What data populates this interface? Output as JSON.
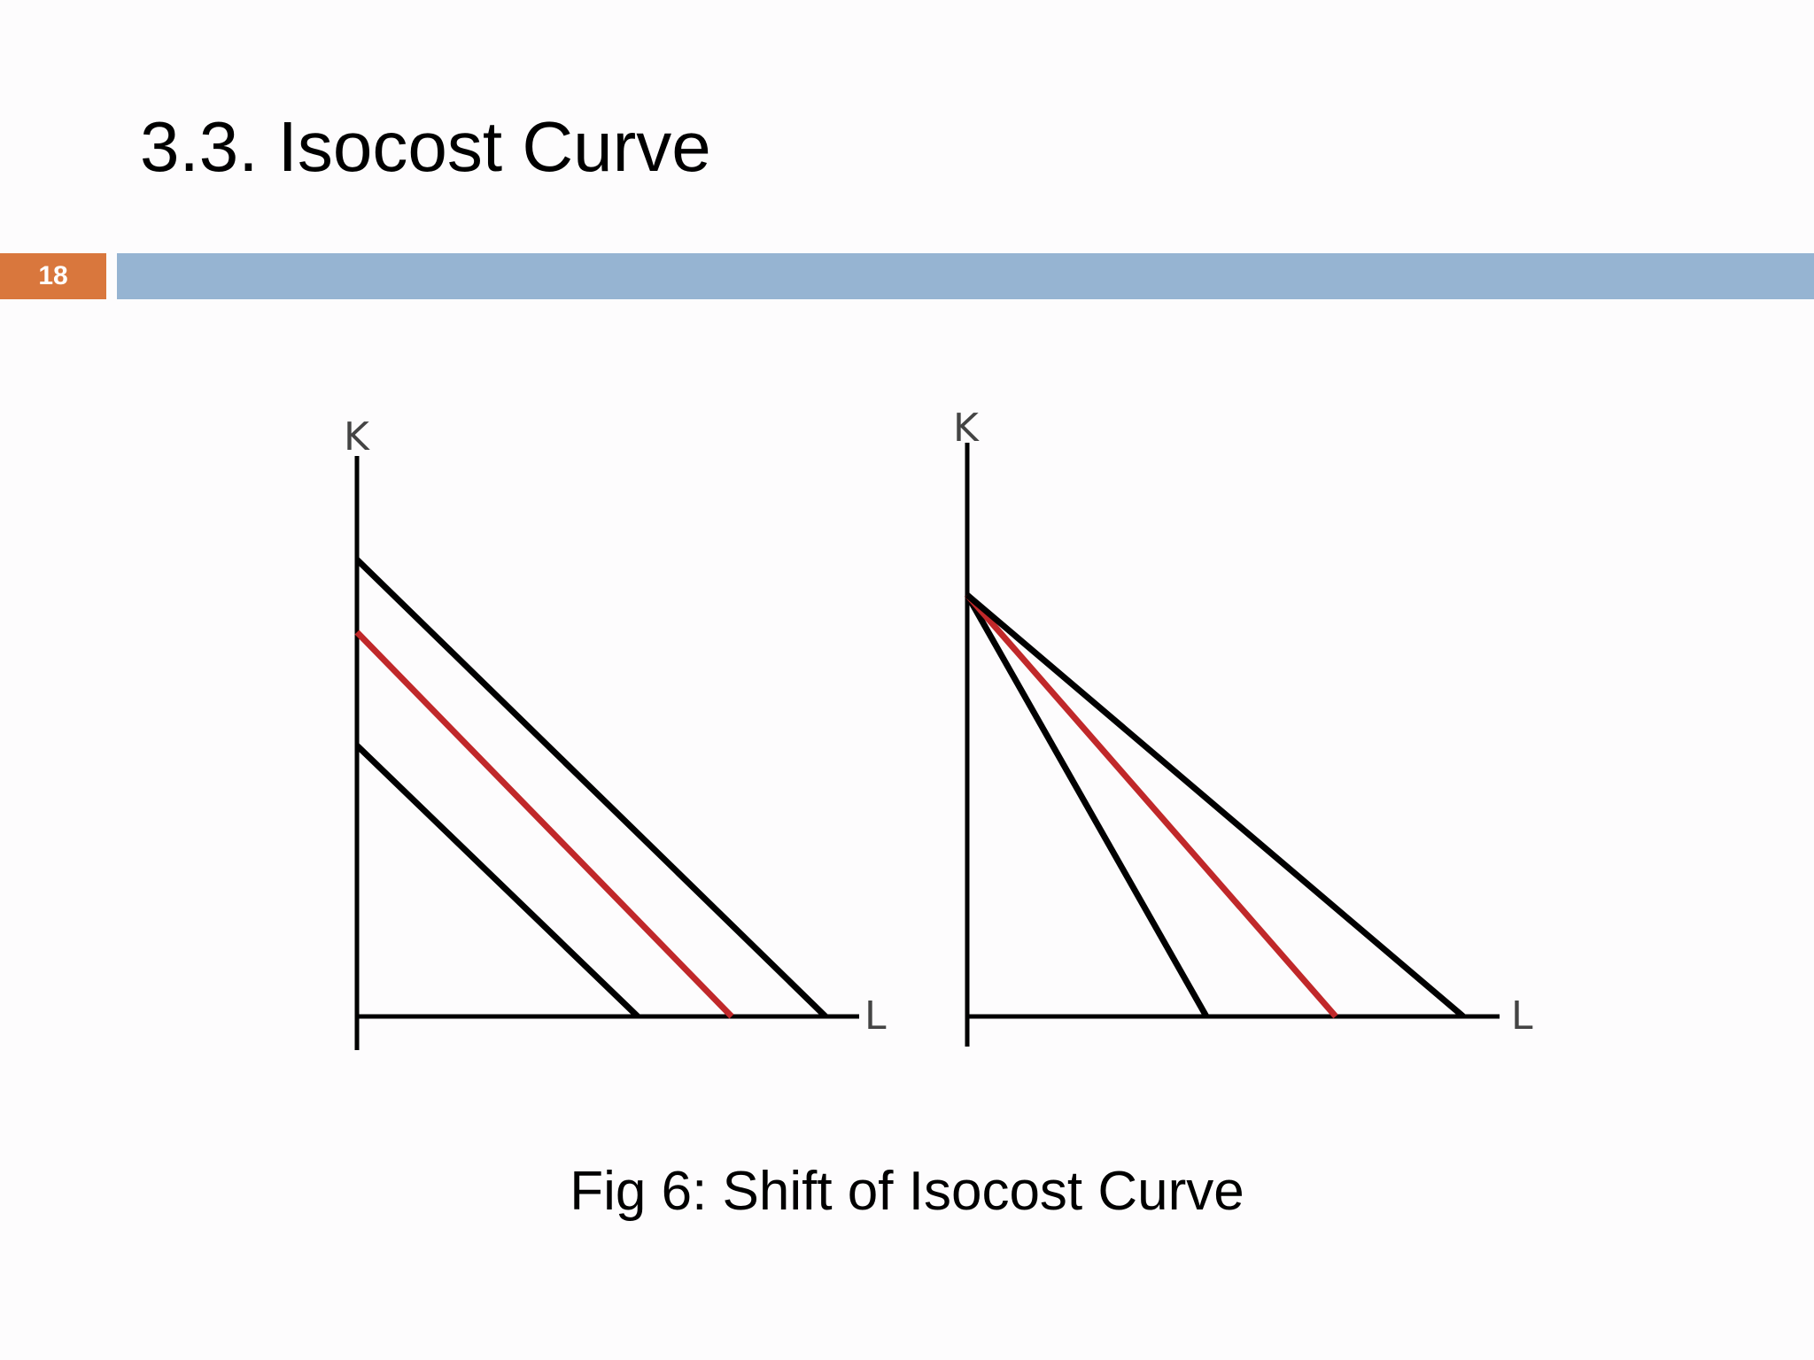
{
  "slide": {
    "title": "3.3. Isocost Curve",
    "number": "18",
    "caption": "Fig 6: Shift of Isocost Curve"
  },
  "colors": {
    "number_badge": "#d9773d",
    "header_bar": "#96b4d2",
    "line_black": "#000000",
    "line_red": "#c0282a"
  },
  "diagrams": [
    {
      "id": "parallel-shift",
      "y_axis_label": "K",
      "x_axis_label": "L"
    },
    {
      "id": "rotation-shift",
      "y_axis_label": "K",
      "x_axis_label": "L"
    }
  ]
}
